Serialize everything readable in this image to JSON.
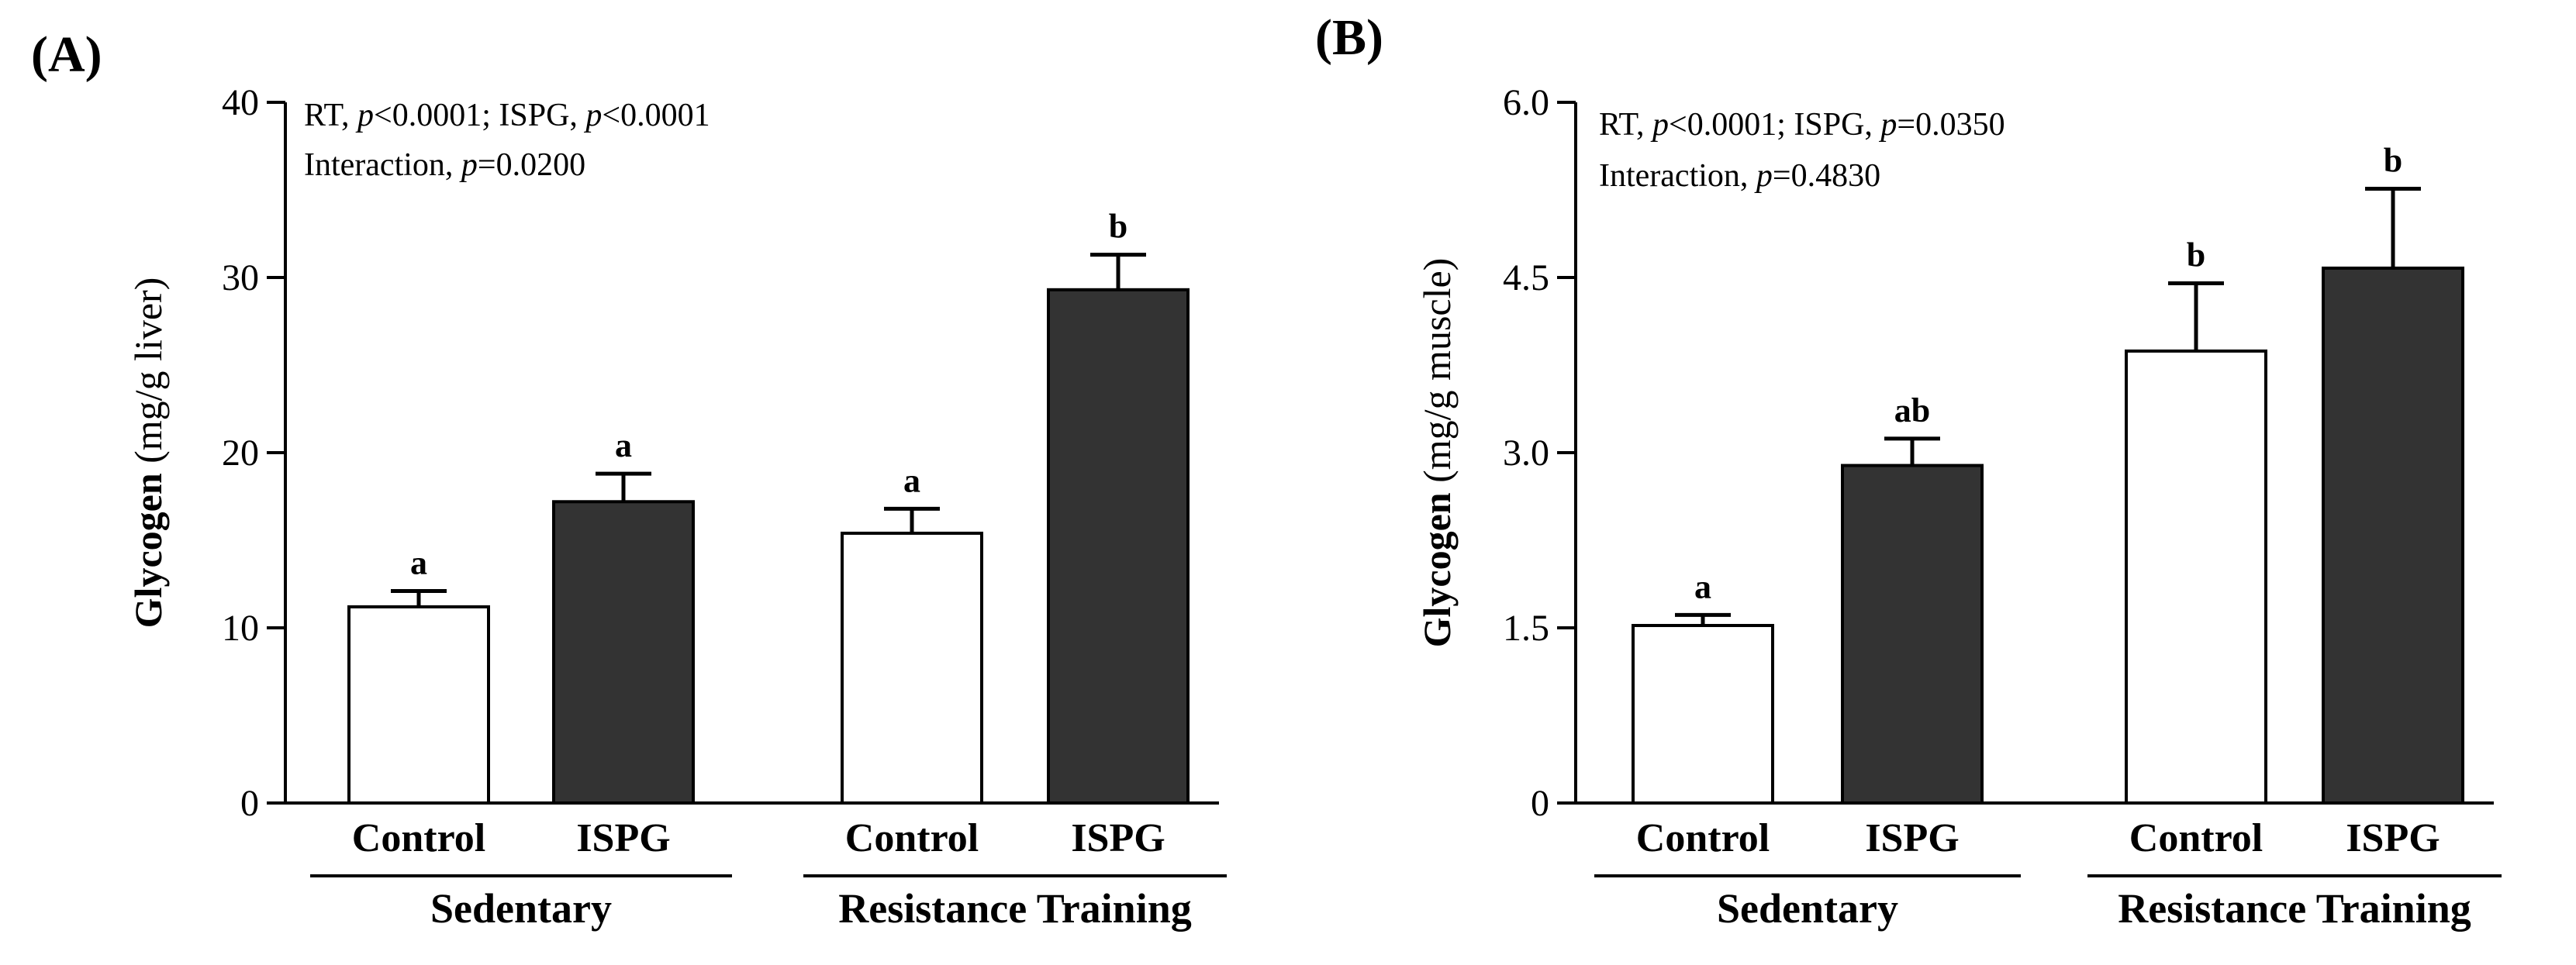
{
  "chart_data": [
    {
      "type": "bar",
      "panel_label": "(A)",
      "ylabel_bold": "Glycogen",
      "ylabel_unit": "(mg/g liver)",
      "ylim": [
        0,
        40
      ],
      "yticks": [
        "0",
        "10",
        "20",
        "30",
        "40"
      ],
      "stats": [
        [
          {
            "t": "RT, "
          },
          {
            "t": "p",
            "i": true
          },
          {
            "t": "<0.0001; ISPG, "
          },
          {
            "t": "p",
            "i": true
          },
          {
            "t": "<0.0001"
          }
        ],
        [
          {
            "t": "Interaction, "
          },
          {
            "t": "p",
            "i": true
          },
          {
            "t": "=0.0200"
          }
        ]
      ],
      "groups": [
        {
          "label": "Sedentary",
          "categories": [
            "Control",
            "ISPG"
          ]
        },
        {
          "label": "Resistance Training",
          "categories": [
            "Control",
            "ISPG"
          ]
        }
      ],
      "series": [
        {
          "category": "Control",
          "color": "#ffffff",
          "values": [
            11.2,
            15.4
          ],
          "errors": [
            0.9,
            1.4
          ],
          "letters": [
            "a",
            "a"
          ]
        },
        {
          "category": "ISPG",
          "color": "#333333",
          "values": [
            17.2,
            29.3
          ],
          "errors": [
            1.6,
            2.0
          ],
          "letters": [
            "a",
            "b"
          ]
        }
      ],
      "grid": false,
      "legend": "none"
    },
    {
      "type": "bar",
      "panel_label": "(B)",
      "ylabel_bold": "Glycogen",
      "ylabel_unit": "(mg/g muscle)",
      "ylim": [
        0,
        6.0
      ],
      "yticks": [
        "0",
        "1.5",
        "3.0",
        "4.5",
        "6.0"
      ],
      "stats": [
        [
          {
            "t": "RT, "
          },
          {
            "t": "p",
            "i": true
          },
          {
            "t": "<0.0001; ISPG, "
          },
          {
            "t": "p",
            "i": true
          },
          {
            "t": "=0.0350"
          }
        ],
        [
          {
            "t": "Interaction, "
          },
          {
            "t": "p",
            "i": true
          },
          {
            "t": "=0.4830"
          }
        ]
      ],
      "groups": [
        {
          "label": "Sedentary",
          "categories": [
            "Control",
            "ISPG"
          ]
        },
        {
          "label": "Resistance Training",
          "categories": [
            "Control",
            "ISPG"
          ]
        }
      ],
      "series": [
        {
          "category": "Control",
          "color": "#ffffff",
          "values": [
            1.52,
            3.87
          ],
          "errors": [
            0.09,
            0.58
          ],
          "letters": [
            "a",
            "b"
          ]
        },
        {
          "category": "ISPG",
          "color": "#333333",
          "values": [
            2.89,
            4.58
          ],
          "errors": [
            0.23,
            0.68
          ],
          "letters": [
            "ab",
            "b"
          ]
        }
      ],
      "grid": false,
      "legend": "none"
    }
  ]
}
